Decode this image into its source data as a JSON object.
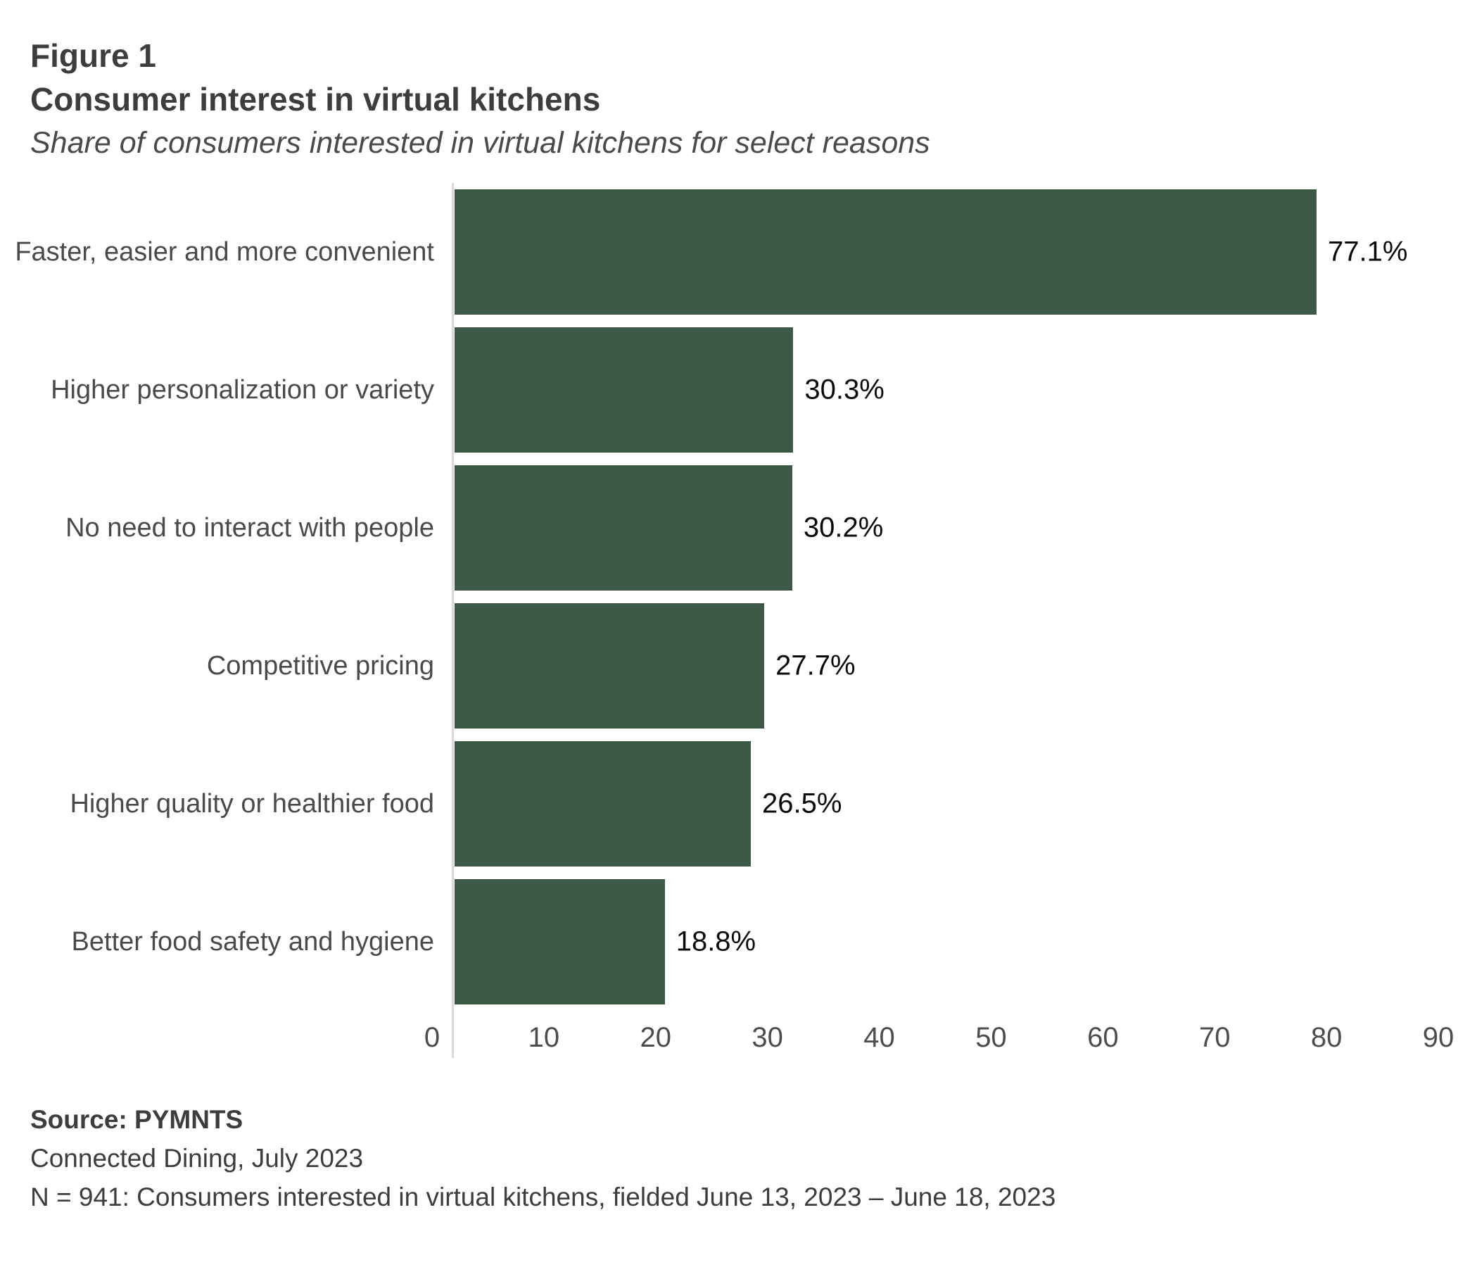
{
  "figure": {
    "label": "Figure 1",
    "title": "Consumer interest in virtual kitchens",
    "subtitle": "Share of consumers interested in virtual kitchens for select reasons"
  },
  "chart_data": {
    "type": "bar",
    "orientation": "horizontal",
    "title": "Consumer interest in virtual kitchens",
    "subtitle": "Share of consumers interested in virtual kitchens for select reasons",
    "categories": [
      "Faster, easier and more convenient",
      "Higher personalization or variety",
      "No need to interact with people",
      "Competitive pricing",
      "Higher quality or healthier food",
      "Better food safety and hygiene"
    ],
    "values": [
      77.1,
      30.3,
      30.2,
      27.7,
      26.5,
      18.8
    ],
    "value_labels": [
      "77.1%",
      "30.3%",
      "30.2%",
      "27.7%",
      "26.5%",
      "18.8%"
    ],
    "xlim": [
      0,
      90
    ],
    "x_ticks": [
      0,
      10,
      20,
      30,
      40,
      50,
      60,
      70,
      80,
      90
    ],
    "xlabel": "",
    "ylabel": "",
    "grid": false,
    "legend": false,
    "value_label_position": "outside-end",
    "bar_color": "#3d5847",
    "axis_line_color": "#d9d9d9"
  },
  "source": {
    "line1": "Source: PYMNTS",
    "line2": "Connected Dining, July 2023",
    "line3": "N = 941: Consumers interested in virtual kitchens, fielded June 13, 2023 – June 18, 2023"
  }
}
